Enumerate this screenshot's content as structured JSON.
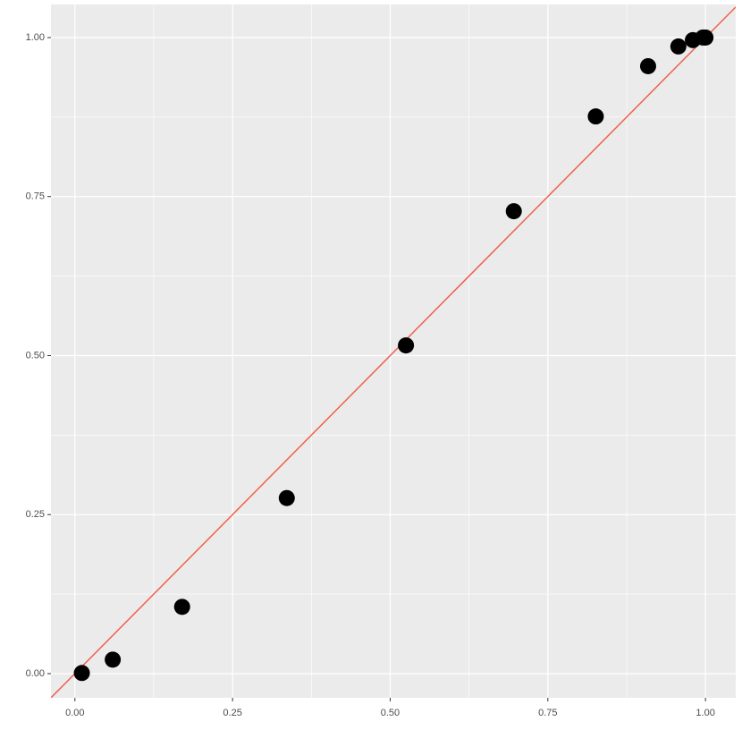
{
  "chart_data": {
    "type": "scatter",
    "x": [
      0.011,
      0.06,
      0.17,
      0.336,
      0.525,
      0.696,
      0.826,
      0.909,
      0.957,
      0.98,
      0.996,
      1.0
    ],
    "values": [
      0.001,
      0.022,
      0.105,
      0.276,
      0.516,
      0.727,
      0.876,
      0.955,
      0.986,
      0.996,
      1.0,
      1.0
    ],
    "color": "#000000",
    "xlim": [
      -0.038,
      1.048
    ],
    "ylim": [
      -0.038,
      1.052
    ],
    "xticks": [
      {
        "value": 0,
        "label": "0.00"
      },
      0.25,
      {
        "value": 0.5,
        "label": "0.50"
      },
      0.75,
      {
        "value": 1,
        "label": "1.00"
      }
    ],
    "yticks": [
      {
        "value": 0,
        "label": "0.00"
      },
      0.25,
      {
        "value": 0.5,
        "label": "0.50"
      },
      0.75,
      {
        "value": 1,
        "label": "1.00"
      }
    ],
    "x_minor_grid": [
      0.125,
      0.375,
      0.625,
      0.875
    ],
    "y_minor_grid": [
      0.125,
      0.375,
      0.625,
      0.875
    ],
    "grid": true,
    "reference_line": {
      "slope": 1,
      "intercept": 0,
      "color": "#f0604c"
    }
  }
}
